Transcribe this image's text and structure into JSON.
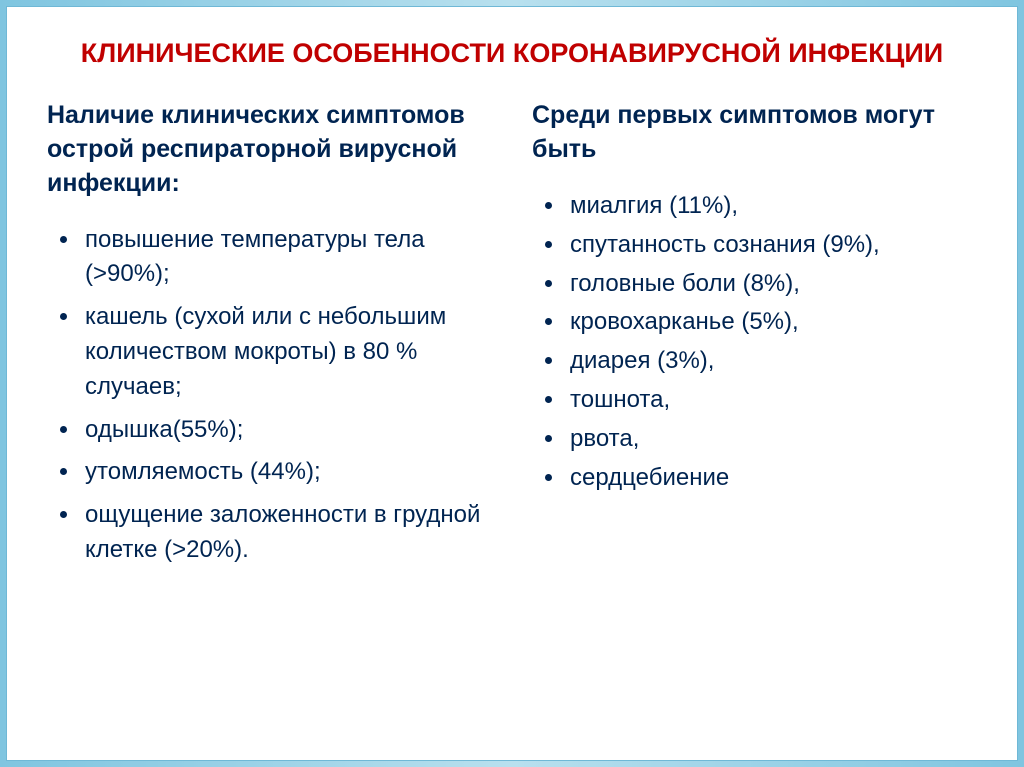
{
  "title": "КЛИНИЧЕСКИЕ ОСОБЕННОСТИ КОРОНАВИРУСНОЙ ИНФЕКЦИИ",
  "title_color": "#c00000",
  "title_fontsize": 27,
  "heading_color": "#002451",
  "heading_fontsize": 25,
  "item_color": "#002451",
  "item_fontsize": 24,
  "bullet_color": "#002451",
  "background_color": "#ffffff",
  "border_gradient": [
    "#7fc5e0",
    "#b8e0ee",
    "#7fc5e0"
  ],
  "left": {
    "heading_line1": "Наличие клинических симптомов",
    "heading_line2": "острой респираторной вирусной инфекции:",
    "items": [
      "повышение температуры тела (>90%);",
      "кашель (сухой или с небольшим количеством мокроты) в 80 % случаев;",
      "одышка(55%);",
      "утомляемость (44%);",
      "ощущение заложенности в грудной клетке (>20%)."
    ]
  },
  "right": {
    "heading": "Среди первых симптомов могут быть",
    "items": [
      "миалгия (11%),",
      "спутанность сознания (9%),",
      "головные боли (8%),",
      "кровохарканье (5%),",
      "диарея (3%),",
      "тошнота,",
      "рвота,",
      "сердцебиение"
    ]
  }
}
